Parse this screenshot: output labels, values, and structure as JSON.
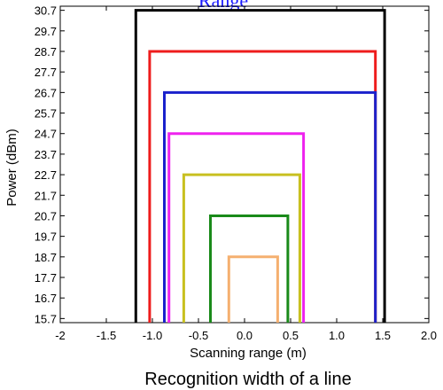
{
  "chart_data": {
    "type": "line",
    "title": "Range",
    "xlabel": "Scanning range (m)",
    "ylabel": "Power (dBm)",
    "xlim": [
      -2,
      2
    ],
    "ylim": [
      15.5,
      30.9
    ],
    "x_ticks": [
      "-2",
      "-1.5",
      "-1.0",
      "-0.5",
      "0.0",
      "0.5",
      "1.0",
      "1.5",
      "2.0"
    ],
    "x_tick_values": [
      -2,
      -1.5,
      -1,
      -0.5,
      0,
      0.5,
      1,
      1.5,
      2
    ],
    "y_ticks": [
      "15.7",
      "16.7",
      "17.7",
      "18.7",
      "19.7",
      "20.7",
      "21.7",
      "22.7",
      "23.7",
      "24.7",
      "25.7",
      "26.7",
      "27.7",
      "28.7",
      "29.7",
      "30.7"
    ],
    "y_tick_values": [
      15.7,
      16.7,
      17.7,
      18.7,
      19.7,
      20.7,
      21.7,
      22.7,
      23.7,
      24.7,
      25.7,
      26.7,
      27.7,
      28.7,
      29.7,
      30.7
    ],
    "grid": false,
    "series": [
      {
        "color": "#000000",
        "x": [
          -1.18,
          -1.18,
          1.52,
          1.52
        ],
        "y": [
          15.5,
          30.7,
          30.7,
          15.5
        ]
      },
      {
        "color": "#ee1c1c",
        "x": [
          -1.03,
          -1.03,
          1.42,
          1.42
        ],
        "y": [
          15.5,
          28.7,
          28.7,
          15.5
        ]
      },
      {
        "color": "#1a22cc",
        "x": [
          -0.87,
          -0.87,
          1.42,
          1.42
        ],
        "y": [
          15.5,
          26.7,
          26.7,
          15.5
        ]
      },
      {
        "color": "#ee22ee",
        "x": [
          -0.82,
          -0.82,
          0.64,
          0.64
        ],
        "y": [
          15.5,
          24.7,
          24.7,
          15.5
        ]
      },
      {
        "color": "#c8c020",
        "x": [
          -0.66,
          -0.66,
          0.6,
          0.6
        ],
        "y": [
          15.5,
          22.7,
          22.7,
          15.5
        ]
      },
      {
        "color": "#1a8a1a",
        "x": [
          -0.37,
          -0.37,
          0.47,
          0.47
        ],
        "y": [
          15.5,
          20.7,
          20.7,
          15.5
        ]
      },
      {
        "color": "#f5b070",
        "x": [
          -0.17,
          -0.17,
          0.36,
          0.36
        ],
        "y": [
          15.5,
          18.7,
          18.7,
          15.5
        ]
      }
    ]
  },
  "caption": "Recognition width of a line"
}
